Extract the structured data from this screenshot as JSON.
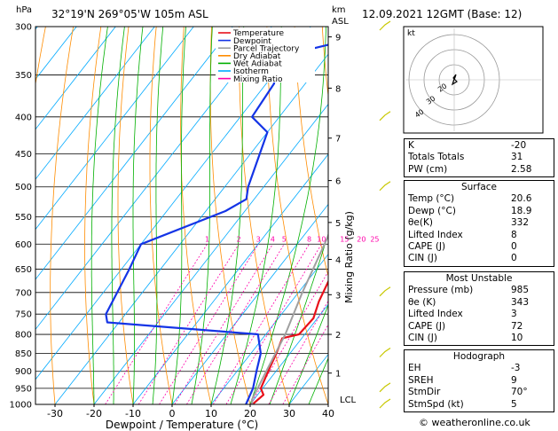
{
  "header": {
    "hpa_label": "hPa",
    "location": "32°19'N  269°05'W  105m  ASL",
    "km_label": "km",
    "asl_label": "ASL",
    "datetime": "12.09.2021  12GMT  (Base: 12)"
  },
  "chart_data": {
    "type": "line",
    "xlabel": "Dewpoint / Temperature (°C)",
    "ylabel_right": "Mixing Ratio (g/kg)",
    "x_ticks": [
      -30,
      -20,
      -10,
      0,
      10,
      20,
      30,
      40
    ],
    "xlim": [
      -35,
      40
    ],
    "pressure_levels": [
      300,
      350,
      400,
      450,
      500,
      550,
      600,
      650,
      700,
      750,
      800,
      850,
      900,
      950,
      1000
    ],
    "ylim": [
      1000,
      300
    ],
    "km_ticks": [
      {
        "label": "9",
        "p": 310
      },
      {
        "label": "8",
        "p": 365
      },
      {
        "label": "7",
        "p": 428
      },
      {
        "label": "6",
        "p": 490
      },
      {
        "label": "5",
        "p": 560
      },
      {
        "label": "4",
        "p": 630
      },
      {
        "label": "3",
        "p": 705
      },
      {
        "label": "2",
        "p": 800
      },
      {
        "label": "1",
        "p": 905
      }
    ],
    "lcl_label": "LCL",
    "mixing_ratio_labels": [
      "1",
      "2",
      "3",
      "4",
      "5",
      "8",
      "10",
      "15",
      "20",
      "25"
    ],
    "mixing_ratio_values": [
      1,
      2,
      3,
      4,
      5,
      8,
      10,
      15,
      20,
      25
    ],
    "legend": [
      {
        "name": "Temperature",
        "color": "#e8101a"
      },
      {
        "name": "Dewpoint",
        "color": "#1434e6"
      },
      {
        "name": "Parcel Trajectory",
        "color": "#a0a0a0"
      },
      {
        "name": "Dry Adiabat",
        "color": "#ff8c00"
      },
      {
        "name": "Wet Adiabat",
        "color": "#00b000"
      },
      {
        "name": "Isotherm",
        "color": "#00aaff"
      },
      {
        "name": "Mixing Ratio",
        "color": "#ff00aa"
      }
    ],
    "series": [
      {
        "name": "Temperature",
        "color": "#e8101a",
        "points": [
          [
            20.6,
            1000
          ],
          [
            21.5,
            970
          ],
          [
            19.5,
            950
          ],
          [
            18,
            900
          ],
          [
            16.5,
            850
          ],
          [
            15,
            810
          ],
          [
            18.5,
            800
          ],
          [
            19,
            760
          ],
          [
            17,
            720
          ],
          [
            14.5,
            650
          ],
          [
            11.5,
            600
          ],
          [
            9.5,
            550
          ],
          [
            6,
            500
          ],
          [
            2,
            450
          ],
          [
            -3.5,
            400
          ],
          [
            -8,
            360
          ],
          [
            -11,
            320
          ],
          [
            -13,
            300
          ]
        ]
      },
      {
        "name": "Dewpoint",
        "color": "#1434e6",
        "points": [
          [
            18.9,
            1000
          ],
          [
            17.5,
            950
          ],
          [
            15,
            900
          ],
          [
            12.5,
            850
          ],
          [
            8,
            800
          ],
          [
            -33,
            770
          ],
          [
            -35,
            750
          ],
          [
            -38,
            650
          ],
          [
            -40,
            600
          ],
          [
            -25,
            540
          ],
          [
            -22,
            520
          ],
          [
            -24,
            500
          ],
          [
            -30,
            420
          ],
          [
            -37,
            400
          ],
          [
            -38,
            360
          ],
          [
            -42,
            330
          ],
          [
            -25,
            310
          ],
          [
            -28,
            300
          ]
        ]
      },
      {
        "name": "Parcel Trajectory",
        "color": "#a0a0a0",
        "points": [
          [
            20.6,
            1000
          ],
          [
            19.5,
            985
          ],
          [
            17.5,
            900
          ],
          [
            15,
            800
          ],
          [
            11,
            700
          ],
          [
            7,
            600
          ],
          [
            2,
            500
          ],
          [
            -6,
            400
          ],
          [
            -20,
            300
          ]
        ]
      }
    ]
  },
  "hodograph": {
    "label": "kt",
    "ring_labels": [
      "40",
      "30",
      "20"
    ]
  },
  "indices": {
    "rows": [
      {
        "label": "K",
        "value": "-20"
      },
      {
        "label": "Totals Totals",
        "value": "31"
      },
      {
        "label": "PW (cm)",
        "value": "2.58"
      }
    ]
  },
  "surface": {
    "title": "Surface",
    "rows": [
      {
        "label": "Temp (°C)",
        "value": "20.6"
      },
      {
        "label": "Dewp (°C)",
        "value": "18.9"
      },
      {
        "label": "θe(K)",
        "value": "332"
      },
      {
        "label": "Lifted Index",
        "value": "8"
      },
      {
        "label": "CAPE (J)",
        "value": "0"
      },
      {
        "label": "CIN (J)",
        "value": "0"
      }
    ]
  },
  "most_unstable": {
    "title": "Most Unstable",
    "rows": [
      {
        "label": "Pressure (mb)",
        "value": "985"
      },
      {
        "label": "θe (K)",
        "value": "343"
      },
      {
        "label": "Lifted Index",
        "value": "3"
      },
      {
        "label": "CAPE (J)",
        "value": "72"
      },
      {
        "label": "CIN (J)",
        "value": "10"
      }
    ]
  },
  "hodograph_table": {
    "title": "Hodograph",
    "rows": [
      {
        "label": "EH",
        "value": "-3"
      },
      {
        "label": "SREH",
        "value": "9"
      },
      {
        "label": "StmDir",
        "value": "70°"
      },
      {
        "label": "StmSpd (kt)",
        "value": "5"
      }
    ]
  },
  "credit": "© weatheronline.co.uk"
}
